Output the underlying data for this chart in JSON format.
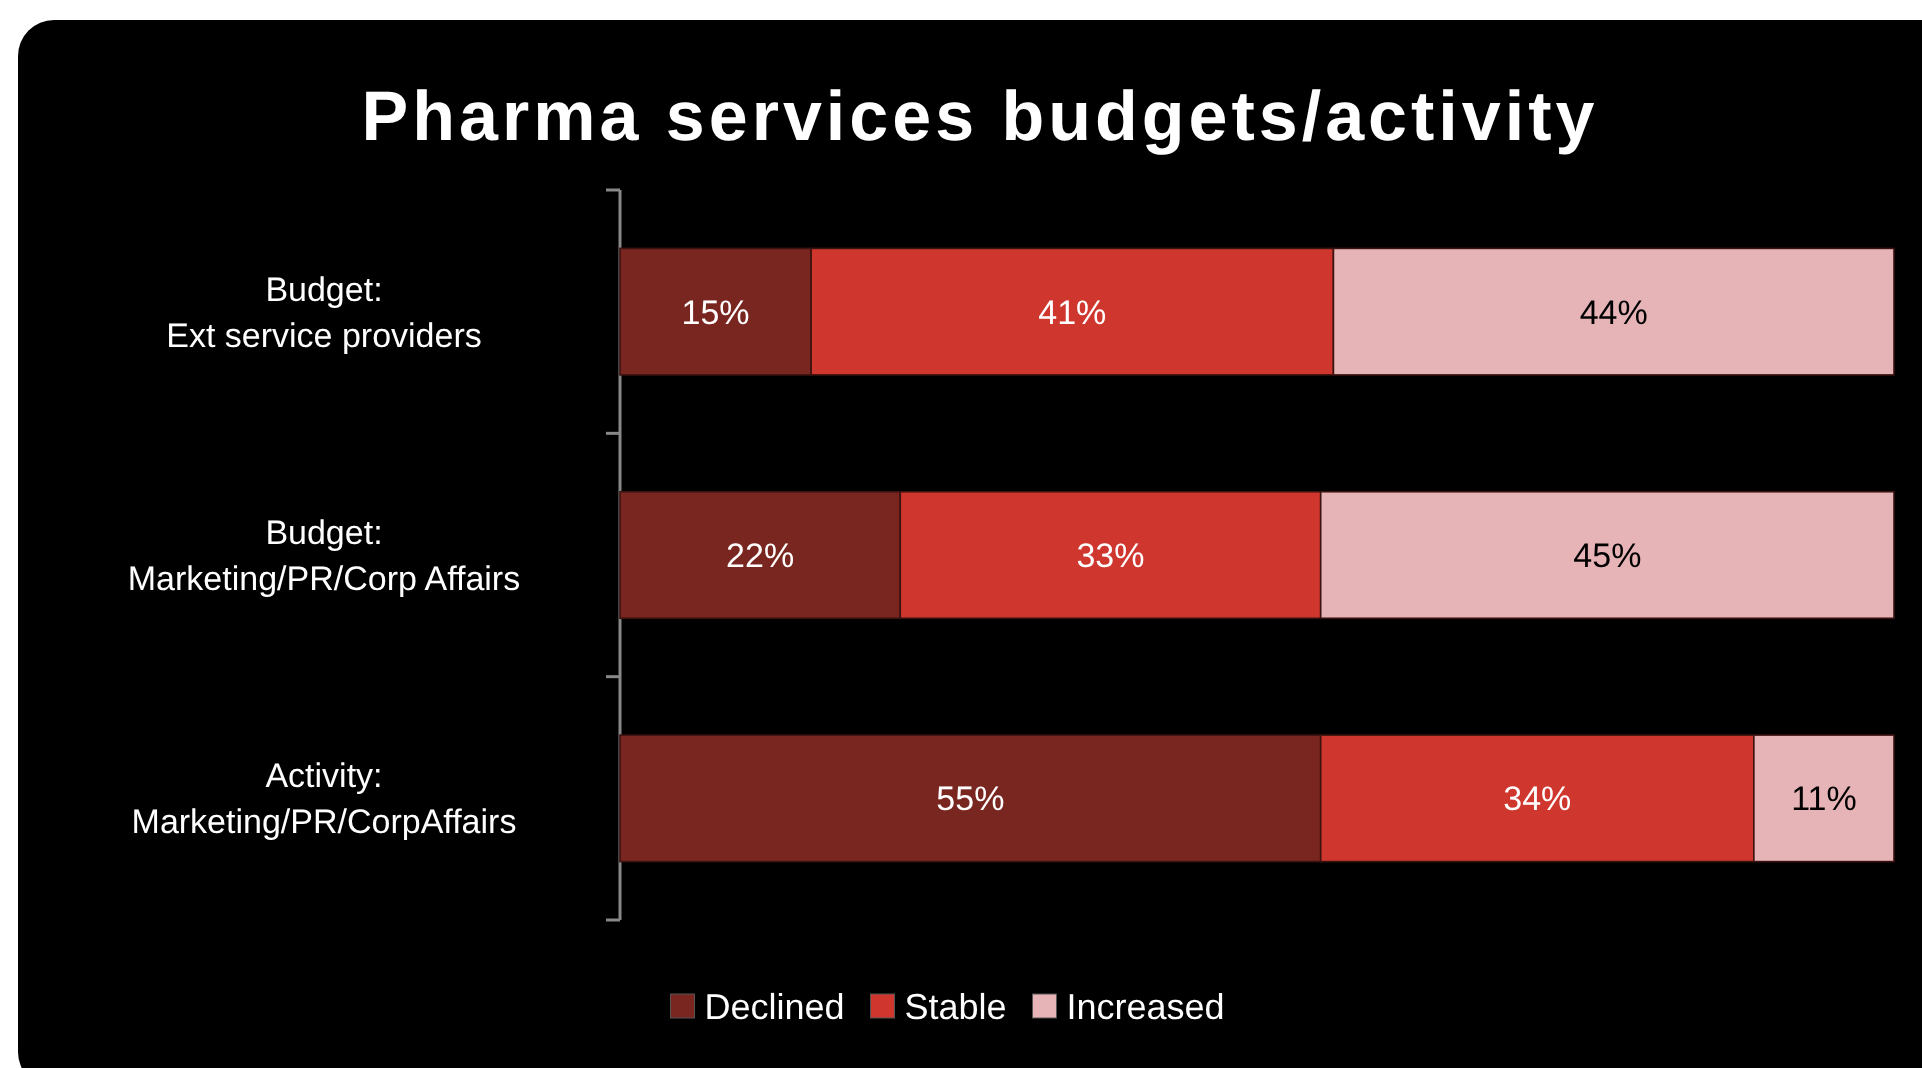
{
  "chart_data": {
    "type": "bar",
    "orientation": "horizontal",
    "stacked": true,
    "title": "Pharma services budgets/activity",
    "categories": [
      "Budget:\nExt service providers",
      "Budget:\nMarketing/PR/Corp Affairs",
      "Activity:\nMarketing/PR/CorpAffairs"
    ],
    "series": [
      {
        "name": "Declined",
        "color": "#7a2620",
        "values": [
          15,
          22,
          55
        ],
        "value_labels": [
          "15%",
          "22%",
          "55%"
        ]
      },
      {
        "name": "Stable",
        "color": "#cf372e",
        "values": [
          41,
          33,
          34
        ],
        "value_labels": [
          "41%",
          "33%",
          "34%"
        ]
      },
      {
        "name": "Increased",
        "color": "#e6b3b6",
        "values": [
          44,
          45,
          11
        ],
        "value_labels": [
          "44%",
          "45%",
          "11%"
        ]
      }
    ],
    "legend": "bottom"
  }
}
